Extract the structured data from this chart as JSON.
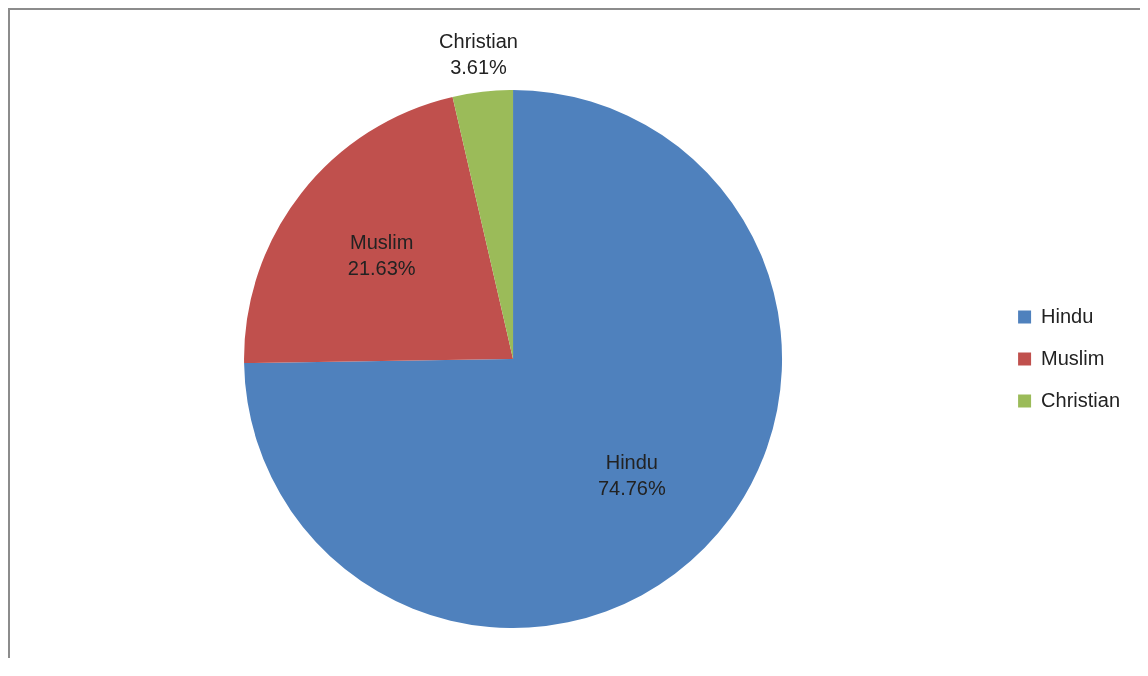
{
  "chart_data": {
    "type": "pie",
    "categories": [
      "Hindu",
      "Muslim",
      "Christian"
    ],
    "values": [
      74.76,
      21.63,
      3.61
    ],
    "colors": [
      "#4f81bd",
      "#c0504d",
      "#9bbb59"
    ],
    "value_labels": [
      "74.76%",
      "21.63%",
      "3.61%"
    ],
    "legend": "right"
  }
}
